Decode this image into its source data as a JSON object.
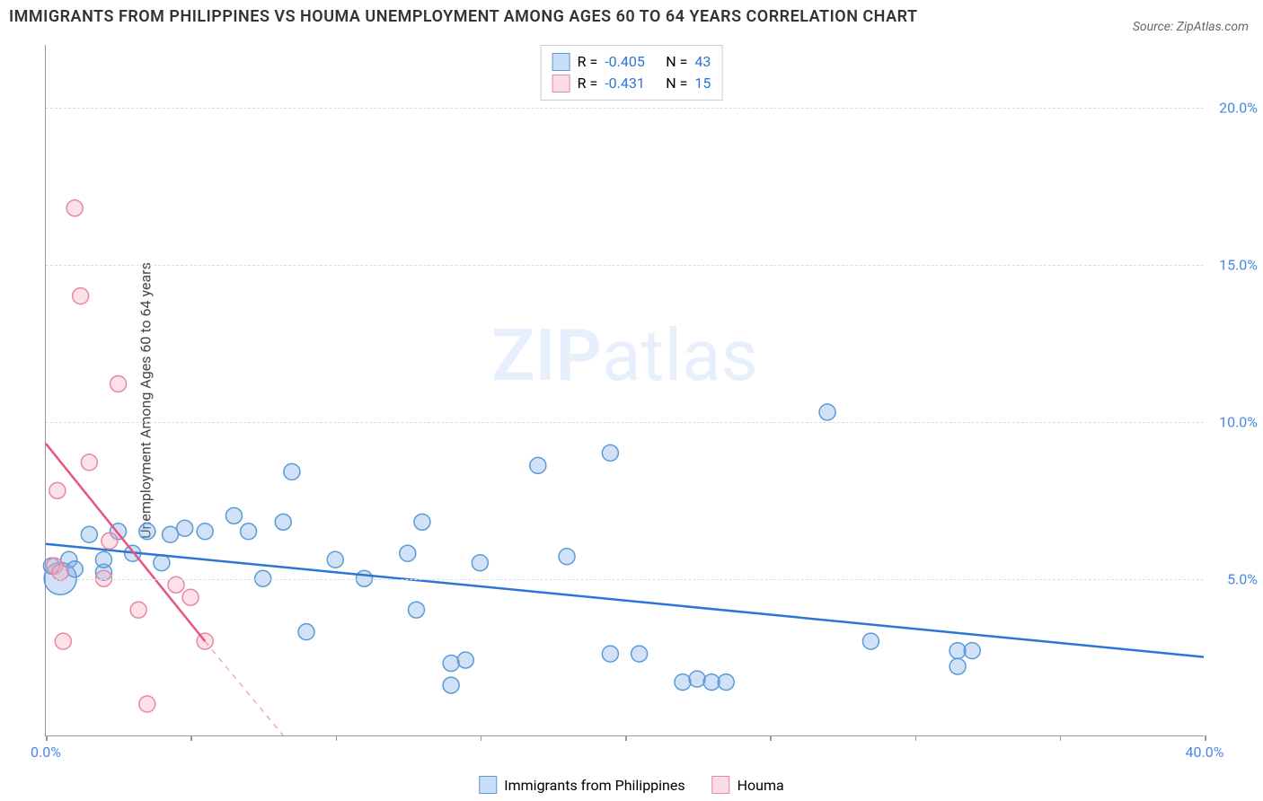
{
  "title": "IMMIGRANTS FROM PHILIPPINES VS HOUMA UNEMPLOYMENT AMONG AGES 60 TO 64 YEARS CORRELATION CHART",
  "source": "Source: ZipAtlas.com",
  "y_axis_label": "Unemployment Among Ages 60 to 64 years",
  "watermark_bold": "ZIP",
  "watermark_light": "atlas",
  "chart": {
    "type": "scatter",
    "xlim": [
      0,
      40
    ],
    "ylim": [
      0,
      22
    ],
    "x_ticks": [
      0,
      5,
      10,
      15,
      20,
      25,
      30,
      35,
      40
    ],
    "y_ticks": [
      5,
      10,
      15,
      20
    ],
    "x_tick_labels": {
      "0": "0.0%",
      "40": "40.0%"
    },
    "y_tick_labels": {
      "5": "5.0%",
      "10": "10.0%",
      "15": "15.0%",
      "20": "20.0%"
    },
    "x_axis_color": "#4a86e8",
    "y_axis_color": "#4a86e8",
    "grid_color": "#dddddd",
    "plot_bg": "#ffffff",
    "series": [
      {
        "name": "Immigrants from Philippines",
        "label": "Immigrants from Philippines",
        "fill_color": "rgba(120,170,235,0.35)",
        "stroke_color": "#5b9bd5",
        "line_color": "#2e75d6",
        "point_radius": 9,
        "r_label": "R =",
        "n_label": "N =",
        "r_value": "-0.405",
        "n_value": "43",
        "trend": {
          "x1": 0,
          "y1": 6.1,
          "x2": 40,
          "y2": 2.5
        },
        "points": [
          {
            "x": 0.5,
            "y": 5.0,
            "r": 18
          },
          {
            "x": 0.2,
            "y": 5.4
          },
          {
            "x": 0.8,
            "y": 5.6
          },
          {
            "x": 1.0,
            "y": 5.3
          },
          {
            "x": 1.5,
            "y": 6.4
          },
          {
            "x": 2.0,
            "y": 5.2
          },
          {
            "x": 2.0,
            "y": 5.6
          },
          {
            "x": 2.5,
            "y": 6.5
          },
          {
            "x": 3.0,
            "y": 5.8
          },
          {
            "x": 3.5,
            "y": 6.5
          },
          {
            "x": 4.0,
            "y": 5.5
          },
          {
            "x": 4.3,
            "y": 6.4
          },
          {
            "x": 4.8,
            "y": 6.6
          },
          {
            "x": 5.5,
            "y": 6.5
          },
          {
            "x": 6.5,
            "y": 7.0
          },
          {
            "x": 7.0,
            "y": 6.5
          },
          {
            "x": 7.5,
            "y": 5.0
          },
          {
            "x": 8.2,
            "y": 6.8
          },
          {
            "x": 8.5,
            "y": 8.4
          },
          {
            "x": 9.0,
            "y": 3.3
          },
          {
            "x": 10.0,
            "y": 5.6
          },
          {
            "x": 11.0,
            "y": 5.0
          },
          {
            "x": 12.5,
            "y": 5.8
          },
          {
            "x": 12.8,
            "y": 4.0
          },
          {
            "x": 13.0,
            "y": 6.8
          },
          {
            "x": 14.0,
            "y": 2.3
          },
          {
            "x": 14.0,
            "y": 1.6
          },
          {
            "x": 14.5,
            "y": 2.4
          },
          {
            "x": 15.0,
            "y": 5.5
          },
          {
            "x": 17.0,
            "y": 8.6
          },
          {
            "x": 18.0,
            "y": 5.7
          },
          {
            "x": 19.5,
            "y": 2.6
          },
          {
            "x": 19.5,
            "y": 9.0
          },
          {
            "x": 20.5,
            "y": 2.6
          },
          {
            "x": 22.0,
            "y": 1.7
          },
          {
            "x": 22.5,
            "y": 1.8
          },
          {
            "x": 23.0,
            "y": 1.7
          },
          {
            "x": 23.5,
            "y": 1.7
          },
          {
            "x": 27.0,
            "y": 10.3
          },
          {
            "x": 28.5,
            "y": 3.0
          },
          {
            "x": 31.5,
            "y": 2.7
          },
          {
            "x": 31.5,
            "y": 2.2
          },
          {
            "x": 32.0,
            "y": 2.7
          }
        ]
      },
      {
        "name": "Houma",
        "label": "Houma",
        "fill_color": "rgba(245,170,190,0.35)",
        "stroke_color": "#e887a0",
        "line_color": "#e8557a",
        "point_radius": 9,
        "r_label": "R =",
        "n_label": "N =",
        "r_value": "-0.431",
        "n_value": "15",
        "trend": {
          "x1": 0,
          "y1": 9.3,
          "x2": 5.5,
          "y2": 3.0
        },
        "trend_dash_ext": {
          "x1": 5.5,
          "y1": 3.0,
          "x2": 8.2,
          "y2": 0
        },
        "points": [
          {
            "x": 0.3,
            "y": 5.4
          },
          {
            "x": 0.4,
            "y": 7.8
          },
          {
            "x": 0.5,
            "y": 5.2
          },
          {
            "x": 0.6,
            "y": 3.0
          },
          {
            "x": 1.0,
            "y": 16.8
          },
          {
            "x": 1.2,
            "y": 14.0
          },
          {
            "x": 1.5,
            "y": 8.7
          },
          {
            "x": 2.0,
            "y": 5.0
          },
          {
            "x": 2.2,
            "y": 6.2
          },
          {
            "x": 2.5,
            "y": 11.2
          },
          {
            "x": 3.2,
            "y": 4.0
          },
          {
            "x": 3.5,
            "y": 1.0
          },
          {
            "x": 4.5,
            "y": 4.8
          },
          {
            "x": 5.0,
            "y": 4.4
          },
          {
            "x": 5.5,
            "y": 3.0
          }
        ]
      }
    ]
  },
  "legend": {
    "series_a": "Immigrants from Philippines",
    "series_b": "Houma"
  }
}
